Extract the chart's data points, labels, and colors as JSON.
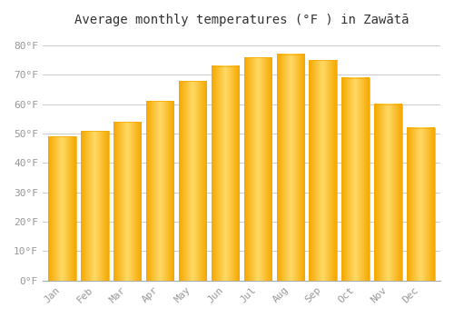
{
  "title": "Average monthly temperatures (°F ) in Zawātā",
  "months": [
    "Jan",
    "Feb",
    "Mar",
    "Apr",
    "May",
    "Jun",
    "Jul",
    "Aug",
    "Sep",
    "Oct",
    "Nov",
    "Dec"
  ],
  "values": [
    49,
    51,
    54,
    61,
    68,
    73,
    76,
    77,
    75,
    69,
    60,
    52
  ],
  "bar_color_center": "#FFD966",
  "bar_color_edge": "#F5A800",
  "background_color": "#ffffff",
  "grid_color": "#cccccc",
  "ylabel_ticks": [
    0,
    10,
    20,
    30,
    40,
    50,
    60,
    70,
    80
  ],
  "ylim": [
    0,
    84
  ],
  "tick_label_color": "#999999",
  "title_fontsize": 10,
  "tick_fontsize": 8,
  "bar_width": 0.85
}
